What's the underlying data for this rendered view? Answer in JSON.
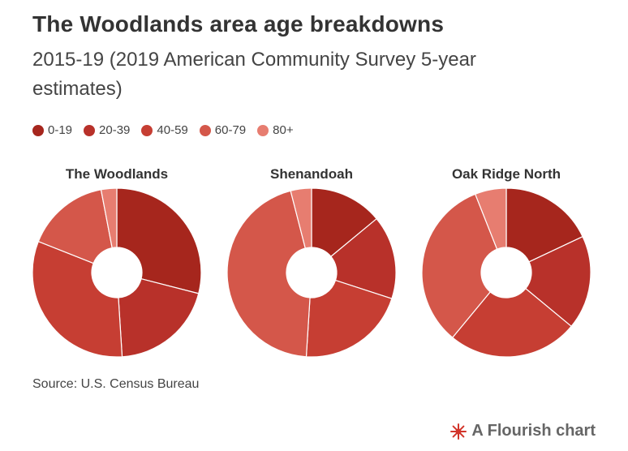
{
  "header": {
    "title": "The Woodlands area age breakdowns",
    "subtitle": "2015-19 (2019 American Community Survey 5-year estimates)"
  },
  "legend": [
    "0-19",
    "20-39",
    "40-59",
    "60-79",
    "80+"
  ],
  "colors": [
    "#a6261d",
    "#b8312a",
    "#c63e33",
    "#d4574a",
    "#e77d70"
  ],
  "chart_data": [
    {
      "type": "pie",
      "title": "The Woodlands",
      "categories": [
        "0-19",
        "20-39",
        "40-59",
        "60-79",
        "80+"
      ],
      "values": [
        29,
        20,
        32,
        16,
        3
      ]
    },
    {
      "type": "pie",
      "title": "Shenandoah",
      "categories": [
        "0-19",
        "20-39",
        "40-59",
        "60-79",
        "80+"
      ],
      "values": [
        14,
        16,
        21,
        45,
        4
      ]
    },
    {
      "type": "pie",
      "title": "Oak Ridge North",
      "categories": [
        "0-19",
        "20-39",
        "40-59",
        "60-79",
        "80+"
      ],
      "values": [
        18,
        18,
        25,
        33,
        6
      ]
    }
  ],
  "footer": {
    "source": "Source: U.S. Census Bureau",
    "branding": "A Flourish chart",
    "branding_icon": "flourish-burst-icon"
  }
}
